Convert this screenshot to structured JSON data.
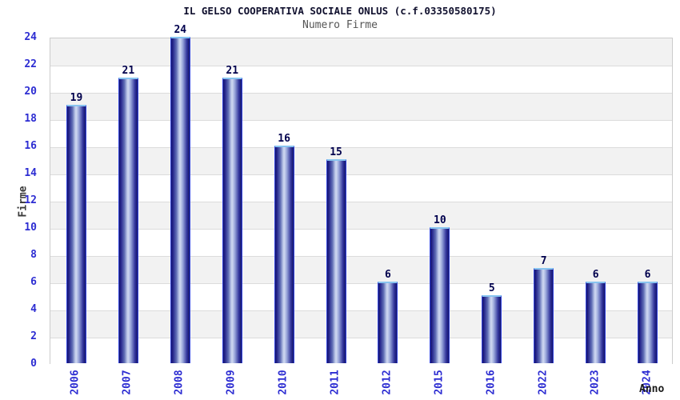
{
  "chart_data": {
    "type": "bar",
    "title": "IL GELSO COOPERATIVA SOCIALE ONLUS (c.f.03350580175)",
    "subtitle": "Numero Firme",
    "xlabel": "Anno",
    "ylabel": "Firme",
    "categories": [
      "2006",
      "2007",
      "2008",
      "2009",
      "2010",
      "2011",
      "2012",
      "2015",
      "2016",
      "2022",
      "2023",
      "2024"
    ],
    "values": [
      19,
      21,
      24,
      21,
      16,
      15,
      6,
      10,
      5,
      7,
      6,
      6
    ],
    "ylim": [
      0,
      24
    ],
    "ytick_step": 2,
    "yticks": [
      0,
      2,
      4,
      6,
      8,
      10,
      12,
      14,
      16,
      18,
      20,
      22,
      24
    ],
    "grid": "horizontal-bands-alternating",
    "legend": "none",
    "bar_value_labels_shown": true
  },
  "colors": {
    "title": "#10102e",
    "subtitle": "#555555",
    "tick_label": "#2d2dd2",
    "value_label": "#00004d",
    "axis_label": "#3a3a3a",
    "band_gray": "#f2f2f2",
    "band_white": "#ffffff",
    "grid_line": "#dcdcdc",
    "plot_border": "#cccccc",
    "bar_edge_dark": "#16166b",
    "bar_center_light": "#cdd6f0",
    "bar_cap_light_blue": "#88c4f0",
    "bar_side_blue": "#3344dd"
  }
}
